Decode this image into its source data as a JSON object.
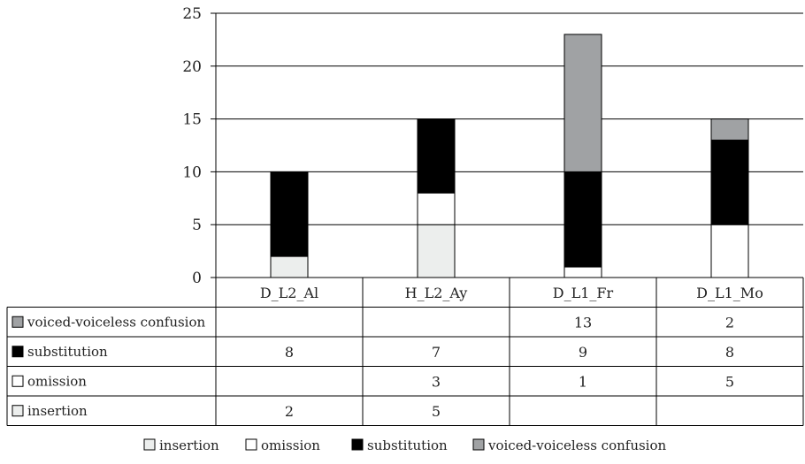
{
  "chart_data": {
    "type": "bar",
    "stacked": true,
    "categories": [
      "D_L2_Al",
      "H_L2_Ay",
      "D_L1_Fr",
      "D_L1_Mo"
    ],
    "series": [
      {
        "name": "insertion",
        "values": [
          2,
          5,
          null,
          null
        ],
        "color": "#eceeed"
      },
      {
        "name": "omission",
        "values": [
          null,
          3,
          1,
          5
        ],
        "color": "#ffffff"
      },
      {
        "name": "substitution",
        "values": [
          8,
          7,
          9,
          8
        ],
        "color": "#000000"
      },
      {
        "name": "voiced-voiceless confusion",
        "values": [
          null,
          null,
          13,
          2
        ],
        "color": "#a0a2a4"
      }
    ],
    "ylim": [
      0,
      25
    ],
    "yticks": [
      0,
      5,
      10,
      15,
      20,
      25
    ],
    "grid": true,
    "legend_position": "bottom",
    "data_table": true,
    "table_row_order": [
      "voiced-voiceless confusion",
      "substitution",
      "omission",
      "insertion"
    ],
    "title": "",
    "xlabel": "",
    "ylabel": ""
  }
}
